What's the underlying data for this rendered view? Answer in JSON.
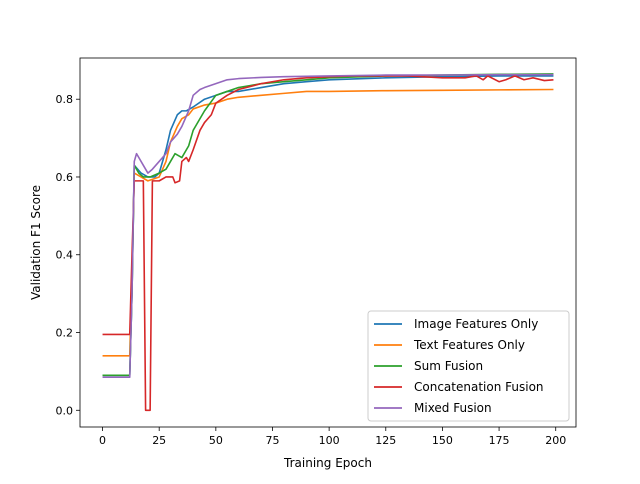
{
  "chart_data": {
    "type": "line",
    "title": "",
    "xlabel": "Training Epoch",
    "ylabel": "Validation F1 Score",
    "xlim": [
      -9.95,
      208.95
    ],
    "ylim": [
      -0.043,
      0.906
    ],
    "xticks": [
      0,
      25,
      50,
      75,
      100,
      125,
      150,
      175,
      200
    ],
    "yticks": [
      0.0,
      0.2,
      0.4,
      0.6,
      0.8
    ],
    "ytick_labels": [
      "0.0",
      "0.2",
      "0.4",
      "0.6",
      "0.8"
    ],
    "grid": false,
    "legend_position": "lower right",
    "series": [
      {
        "name": "Image Features Only",
        "color": "#1f77b4",
        "points": [
          [
            0,
            0.09
          ],
          [
            12,
            0.09
          ],
          [
            13,
            0.3
          ],
          [
            14,
            0.63
          ],
          [
            17,
            0.61
          ],
          [
            20,
            0.6
          ],
          [
            23,
            0.6
          ],
          [
            25,
            0.61
          ],
          [
            28,
            0.67
          ],
          [
            30,
            0.72
          ],
          [
            33,
            0.76
          ],
          [
            35,
            0.77
          ],
          [
            37,
            0.77
          ],
          [
            40,
            0.78
          ],
          [
            45,
            0.8
          ],
          [
            50,
            0.81
          ],
          [
            55,
            0.82
          ],
          [
            60,
            0.82
          ],
          [
            70,
            0.83
          ],
          [
            80,
            0.84
          ],
          [
            90,
            0.845
          ],
          [
            100,
            0.85
          ],
          [
            125,
            0.855
          ],
          [
            150,
            0.858
          ],
          [
            175,
            0.86
          ],
          [
            199,
            0.86
          ]
        ]
      },
      {
        "name": "Text Features Only",
        "color": "#ff7f0e",
        "points": [
          [
            0,
            0.14
          ],
          [
            12,
            0.14
          ],
          [
            13,
            0.35
          ],
          [
            14,
            0.61
          ],
          [
            17,
            0.6
          ],
          [
            20,
            0.59
          ],
          [
            25,
            0.6
          ],
          [
            28,
            0.64
          ],
          [
            30,
            0.69
          ],
          [
            33,
            0.73
          ],
          [
            35,
            0.75
          ],
          [
            38,
            0.76
          ],
          [
            40,
            0.775
          ],
          [
            45,
            0.785
          ],
          [
            50,
            0.79
          ],
          [
            55,
            0.8
          ],
          [
            60,
            0.805
          ],
          [
            70,
            0.81
          ],
          [
            80,
            0.815
          ],
          [
            90,
            0.82
          ],
          [
            100,
            0.82
          ],
          [
            125,
            0.822
          ],
          [
            150,
            0.823
          ],
          [
            175,
            0.824
          ],
          [
            199,
            0.825
          ]
        ]
      },
      {
        "name": "Sum Fusion",
        "color": "#2ca02c",
        "points": [
          [
            0,
            0.09
          ],
          [
            12,
            0.09
          ],
          [
            13,
            0.3
          ],
          [
            14,
            0.63
          ],
          [
            16,
            0.61
          ],
          [
            18,
            0.6
          ],
          [
            21,
            0.6
          ],
          [
            25,
            0.61
          ],
          [
            28,
            0.62
          ],
          [
            30,
            0.64
          ],
          [
            32,
            0.66
          ],
          [
            35,
            0.65
          ],
          [
            38,
            0.68
          ],
          [
            40,
            0.72
          ],
          [
            45,
            0.77
          ],
          [
            50,
            0.81
          ],
          [
            55,
            0.82
          ],
          [
            60,
            0.83
          ],
          [
            65,
            0.835
          ],
          [
            70,
            0.84
          ],
          [
            80,
            0.845
          ],
          [
            90,
            0.85
          ],
          [
            100,
            0.855
          ],
          [
            125,
            0.86
          ],
          [
            150,
            0.862
          ],
          [
            175,
            0.864
          ],
          [
            199,
            0.865
          ]
        ]
      },
      {
        "name": "Concatenation Fusion",
        "color": "#d62728",
        "points": [
          [
            0,
            0.195
          ],
          [
            12,
            0.195
          ],
          [
            13,
            0.4
          ],
          [
            14,
            0.59
          ],
          [
            18,
            0.59
          ],
          [
            19,
            0.0
          ],
          [
            21,
            0.0
          ],
          [
            22,
            0.59
          ],
          [
            25,
            0.59
          ],
          [
            28,
            0.6
          ],
          [
            31,
            0.6
          ],
          [
            32,
            0.585
          ],
          [
            34,
            0.59
          ],
          [
            35,
            0.64
          ],
          [
            37,
            0.65
          ],
          [
            38,
            0.64
          ],
          [
            40,
            0.67
          ],
          [
            43,
            0.72
          ],
          [
            45,
            0.74
          ],
          [
            48,
            0.76
          ],
          [
            50,
            0.79
          ],
          [
            55,
            0.81
          ],
          [
            60,
            0.825
          ],
          [
            70,
            0.84
          ],
          [
            80,
            0.85
          ],
          [
            90,
            0.855
          ],
          [
            100,
            0.858
          ],
          [
            110,
            0.86
          ],
          [
            125,
            0.86
          ],
          [
            135,
            0.86
          ],
          [
            150,
            0.855
          ],
          [
            160,
            0.855
          ],
          [
            165,
            0.86
          ],
          [
            168,
            0.85
          ],
          [
            170,
            0.86
          ],
          [
            175,
            0.845
          ],
          [
            178,
            0.85
          ],
          [
            182,
            0.86
          ],
          [
            186,
            0.85
          ],
          [
            190,
            0.855
          ],
          [
            195,
            0.848
          ],
          [
            199,
            0.85
          ]
        ]
      },
      {
        "name": "Mixed Fusion",
        "color": "#9467bd",
        "points": [
          [
            0,
            0.085
          ],
          [
            12,
            0.085
          ],
          [
            13,
            0.3
          ],
          [
            14,
            0.64
          ],
          [
            15,
            0.66
          ],
          [
            18,
            0.63
          ],
          [
            20,
            0.61
          ],
          [
            22,
            0.62
          ],
          [
            25,
            0.64
          ],
          [
            28,
            0.66
          ],
          [
            30,
            0.69
          ],
          [
            33,
            0.71
          ],
          [
            35,
            0.73
          ],
          [
            38,
            0.77
          ],
          [
            40,
            0.81
          ],
          [
            43,
            0.825
          ],
          [
            45,
            0.83
          ],
          [
            50,
            0.84
          ],
          [
            55,
            0.85
          ],
          [
            60,
            0.853
          ],
          [
            70,
            0.856
          ],
          [
            80,
            0.858
          ],
          [
            100,
            0.86
          ],
          [
            125,
            0.862
          ],
          [
            150,
            0.862
          ],
          [
            175,
            0.863
          ],
          [
            199,
            0.863
          ]
        ]
      }
    ]
  }
}
